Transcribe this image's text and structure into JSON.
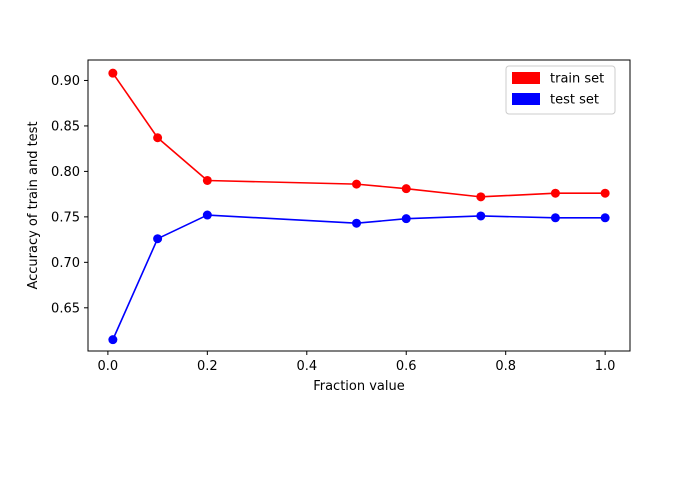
{
  "chart_data": {
    "type": "line",
    "title": "",
    "xlabel": "Fraction value",
    "ylabel": "Accuracy of train and test",
    "xlim": [
      -0.04,
      1.05
    ],
    "ylim": [
      0.6025,
      0.9225
    ],
    "xticks": [
      0.0,
      0.2,
      0.4,
      0.6,
      0.8,
      1.0
    ],
    "xtick_labels": [
      "0.0",
      "0.2",
      "0.4",
      "0.6",
      "0.8",
      "1.0"
    ],
    "yticks": [
      0.65,
      0.7,
      0.75,
      0.8,
      0.85,
      0.9
    ],
    "ytick_labels": [
      "0.65",
      "0.70",
      "0.75",
      "0.80",
      "0.85",
      "0.90"
    ],
    "grid": false,
    "legend": {
      "position": "top-right"
    },
    "series": [
      {
        "name": "train set",
        "color": "#ff0000",
        "marker": "circle",
        "x": [
          0.01,
          0.1,
          0.2,
          0.5,
          0.6,
          0.75,
          0.9,
          1.0
        ],
        "y": [
          0.908,
          0.837,
          0.79,
          0.786,
          0.781,
          0.772,
          0.776,
          0.776
        ]
      },
      {
        "name": "test set",
        "color": "#0000ff",
        "marker": "circle",
        "x": [
          0.01,
          0.1,
          0.2,
          0.5,
          0.6,
          0.75,
          0.9,
          1.0
        ],
        "y": [
          0.615,
          0.726,
          0.752,
          0.743,
          0.748,
          0.751,
          0.749,
          0.749
        ]
      }
    ]
  }
}
